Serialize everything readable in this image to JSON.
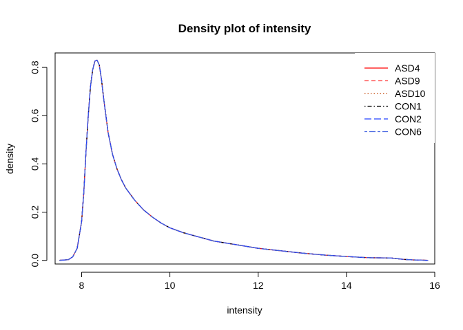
{
  "chart_data": {
    "type": "line",
    "title": "Density plot of intensity",
    "xlabel": "intensity",
    "ylabel": "density",
    "xlim": [
      7.4,
      16.0
    ],
    "ylim": [
      -0.015,
      0.86
    ],
    "xticks": [
      8,
      10,
      12,
      14,
      16
    ],
    "yticks": [
      0.0,
      0.2,
      0.4,
      0.6,
      0.8
    ],
    "xtick_labels": [
      "8",
      "10",
      "12",
      "14",
      "16"
    ],
    "ytick_labels": [
      "0.0",
      "0.2",
      "0.4",
      "0.6",
      "0.8"
    ],
    "grid": false,
    "legend_position": "top-right",
    "x": [
      7.5,
      7.7,
      7.8,
      7.9,
      8.0,
      8.05,
      8.1,
      8.15,
      8.2,
      8.25,
      8.3,
      8.35,
      8.4,
      8.45,
      8.5,
      8.55,
      8.6,
      8.7,
      8.8,
      8.9,
      9.0,
      9.2,
      9.4,
      9.6,
      9.8,
      10.0,
      10.3,
      10.6,
      11.0,
      11.5,
      12.0,
      12.5,
      13.0,
      13.5,
      14.0,
      14.5,
      15.0,
      15.1,
      15.3,
      15.5,
      15.7,
      15.85
    ],
    "series": [
      {
        "name": "ASD4",
        "color": "#ff0000",
        "dash": "solid",
        "values": [
          0.0,
          0.003,
          0.015,
          0.05,
          0.16,
          0.28,
          0.45,
          0.6,
          0.72,
          0.79,
          0.826,
          0.83,
          0.81,
          0.75,
          0.67,
          0.6,
          0.53,
          0.44,
          0.38,
          0.335,
          0.3,
          0.25,
          0.21,
          0.18,
          0.155,
          0.135,
          0.115,
          0.1,
          0.08,
          0.065,
          0.05,
          0.04,
          0.03,
          0.022,
          0.016,
          0.011,
          0.01,
          0.008,
          0.004,
          0.002,
          0.001,
          0.0
        ]
      },
      {
        "name": "ASD9",
        "color": "#ff4040",
        "dash": "dashed",
        "values": [
          0.0,
          0.003,
          0.015,
          0.05,
          0.16,
          0.28,
          0.45,
          0.6,
          0.72,
          0.79,
          0.826,
          0.83,
          0.81,
          0.75,
          0.67,
          0.6,
          0.53,
          0.44,
          0.38,
          0.335,
          0.3,
          0.25,
          0.21,
          0.18,
          0.155,
          0.135,
          0.115,
          0.1,
          0.08,
          0.065,
          0.05,
          0.04,
          0.03,
          0.022,
          0.016,
          0.011,
          0.01,
          0.008,
          0.004,
          0.002,
          0.001,
          0.0
        ]
      },
      {
        "name": "ASD10",
        "color": "#c04000",
        "dash": "dotted",
        "values": [
          0.0,
          0.003,
          0.015,
          0.05,
          0.16,
          0.28,
          0.45,
          0.6,
          0.72,
          0.79,
          0.826,
          0.83,
          0.81,
          0.75,
          0.67,
          0.6,
          0.53,
          0.44,
          0.38,
          0.335,
          0.3,
          0.25,
          0.21,
          0.18,
          0.155,
          0.135,
          0.115,
          0.1,
          0.08,
          0.065,
          0.05,
          0.04,
          0.03,
          0.022,
          0.016,
          0.011,
          0.01,
          0.008,
          0.004,
          0.002,
          0.001,
          0.0
        ]
      },
      {
        "name": "CON1",
        "color": "#000000",
        "dash": "dotdash",
        "values": [
          0.0,
          0.003,
          0.015,
          0.05,
          0.16,
          0.28,
          0.45,
          0.6,
          0.72,
          0.79,
          0.826,
          0.83,
          0.81,
          0.75,
          0.67,
          0.6,
          0.53,
          0.44,
          0.38,
          0.335,
          0.3,
          0.25,
          0.21,
          0.18,
          0.155,
          0.135,
          0.115,
          0.1,
          0.08,
          0.065,
          0.05,
          0.04,
          0.03,
          0.022,
          0.016,
          0.011,
          0.01,
          0.008,
          0.004,
          0.002,
          0.001,
          0.0
        ]
      },
      {
        "name": "CON2",
        "color": "#2040ff",
        "dash": "longdash",
        "values": [
          0.0,
          0.003,
          0.015,
          0.05,
          0.16,
          0.28,
          0.45,
          0.6,
          0.72,
          0.79,
          0.826,
          0.83,
          0.81,
          0.75,
          0.67,
          0.6,
          0.53,
          0.44,
          0.38,
          0.335,
          0.3,
          0.25,
          0.21,
          0.18,
          0.155,
          0.135,
          0.115,
          0.1,
          0.08,
          0.065,
          0.05,
          0.04,
          0.03,
          0.022,
          0.016,
          0.011,
          0.01,
          0.008,
          0.004,
          0.002,
          0.001,
          0.0
        ]
      },
      {
        "name": "CON6",
        "color": "#4060e0",
        "dash": "twodash",
        "values": [
          0.0,
          0.003,
          0.015,
          0.05,
          0.16,
          0.28,
          0.45,
          0.6,
          0.72,
          0.79,
          0.826,
          0.83,
          0.81,
          0.75,
          0.67,
          0.6,
          0.53,
          0.44,
          0.38,
          0.335,
          0.3,
          0.25,
          0.21,
          0.18,
          0.155,
          0.135,
          0.115,
          0.1,
          0.08,
          0.065,
          0.05,
          0.04,
          0.03,
          0.022,
          0.016,
          0.011,
          0.01,
          0.008,
          0.004,
          0.002,
          0.001,
          0.0
        ]
      }
    ]
  }
}
